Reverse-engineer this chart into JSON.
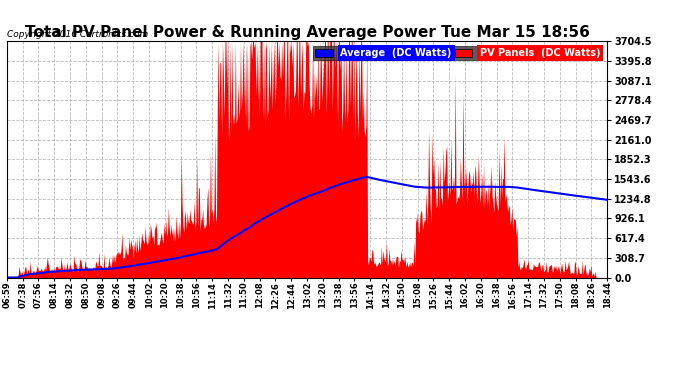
{
  "title": "Total PV Panel Power & Running Average Power Tue Mar 15 18:56",
  "copyright": "Copyright 2016 Cartronics.com",
  "legend_avg": "Average  (DC Watts)",
  "legend_pv": "PV Panels  (DC Watts)",
  "yticks": [
    0.0,
    308.7,
    617.4,
    926.1,
    1234.8,
    1543.6,
    1852.3,
    2161.0,
    2469.7,
    2778.4,
    3087.1,
    3395.8,
    3704.5
  ],
  "ymax": 3704.5,
  "bg_color": "#ffffff",
  "plot_bg_color": "#ffffff",
  "grid_color": "#aaaaaa",
  "pv_color": "#ff0000",
  "avg_color": "#0000ff",
  "title_fontsize": 11,
  "xtick_labels": [
    "06:59",
    "07:38",
    "07:56",
    "08:14",
    "08:32",
    "08:50",
    "09:08",
    "09:26",
    "09:44",
    "10:02",
    "10:20",
    "10:38",
    "10:56",
    "11:14",
    "11:32",
    "11:50",
    "12:08",
    "12:26",
    "12:44",
    "13:02",
    "13:20",
    "13:38",
    "13:56",
    "14:14",
    "14:32",
    "14:50",
    "15:08",
    "15:26",
    "15:44",
    "16:02",
    "16:20",
    "16:38",
    "16:56",
    "17:14",
    "17:32",
    "17:50",
    "18:08",
    "18:26",
    "18:44"
  ]
}
